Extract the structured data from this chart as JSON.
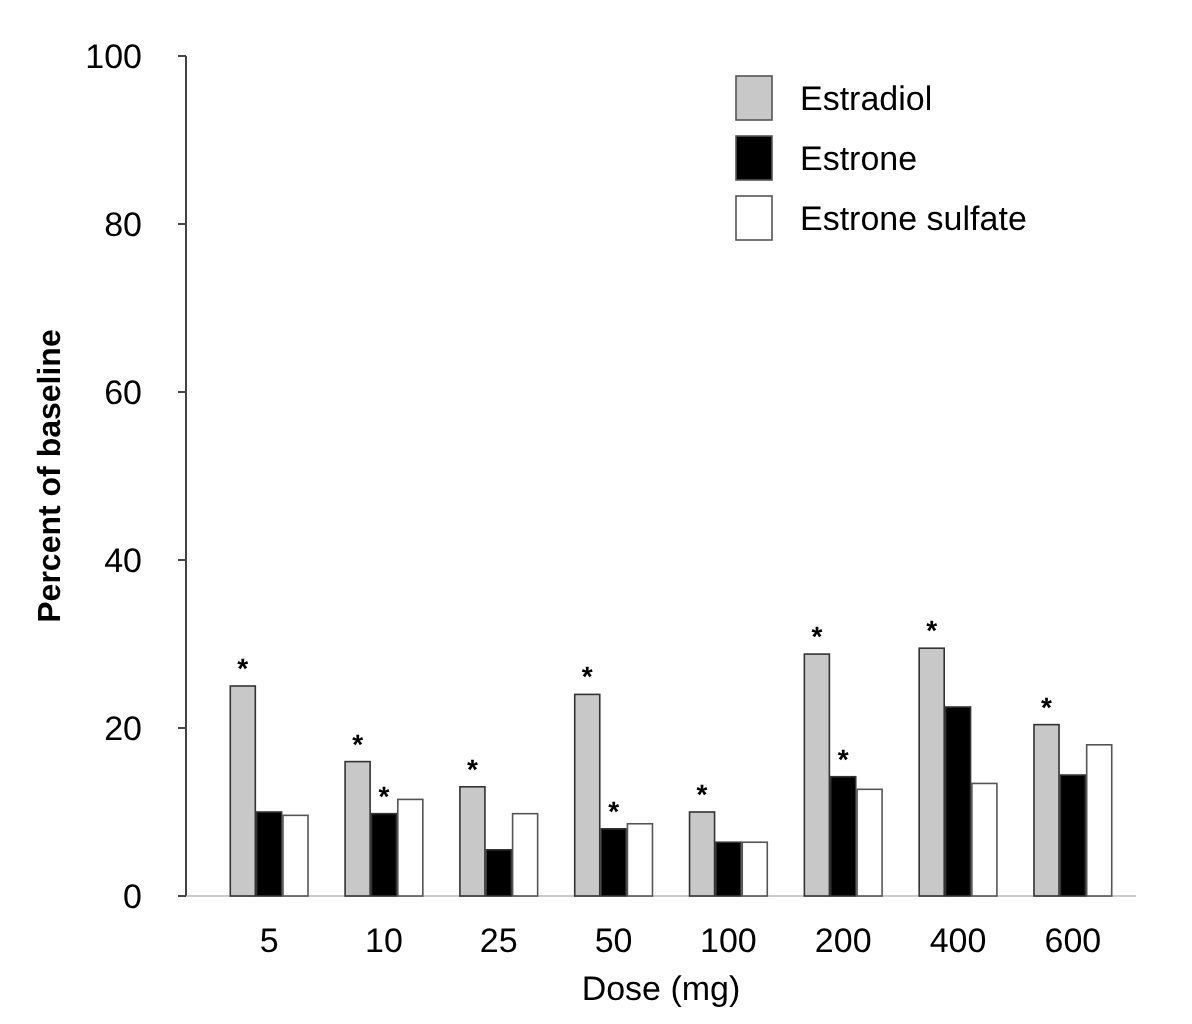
{
  "chart_data": {
    "type": "bar",
    "xlabel": "Dose (mg)",
    "ylabel": "Percent of baseline",
    "categories": [
      "5",
      "10",
      "25",
      "50",
      "100",
      "200",
      "400",
      "600"
    ],
    "series": [
      {
        "name": "Estradiol",
        "color": "#c8c8c8",
        "values": [
          25,
          16,
          13,
          24,
          10,
          28.8,
          29.5,
          20.4
        ],
        "value_labels": [
          "*",
          "*",
          "*",
          "*",
          "*",
          "*",
          "*",
          "*"
        ]
      },
      {
        "name": "Estrone",
        "color": "#000000",
        "values": [
          10,
          9.8,
          5.5,
          8,
          6.4,
          14.2,
          22.5,
          14.4
        ],
        "value_labels": [
          null,
          "*",
          null,
          "*",
          null,
          "*",
          null,
          null
        ]
      },
      {
        "name": "Estrone sulfate",
        "color": "#ffffff",
        "values": [
          9.6,
          11.5,
          9.8,
          8.6,
          6.4,
          12.7,
          13.4,
          18
        ]
      }
    ],
    "ylim": [
      0,
      100
    ],
    "yticks": [
      0,
      20,
      40,
      60,
      80,
      100
    ],
    "legend": "top right",
    "grid": false
  }
}
